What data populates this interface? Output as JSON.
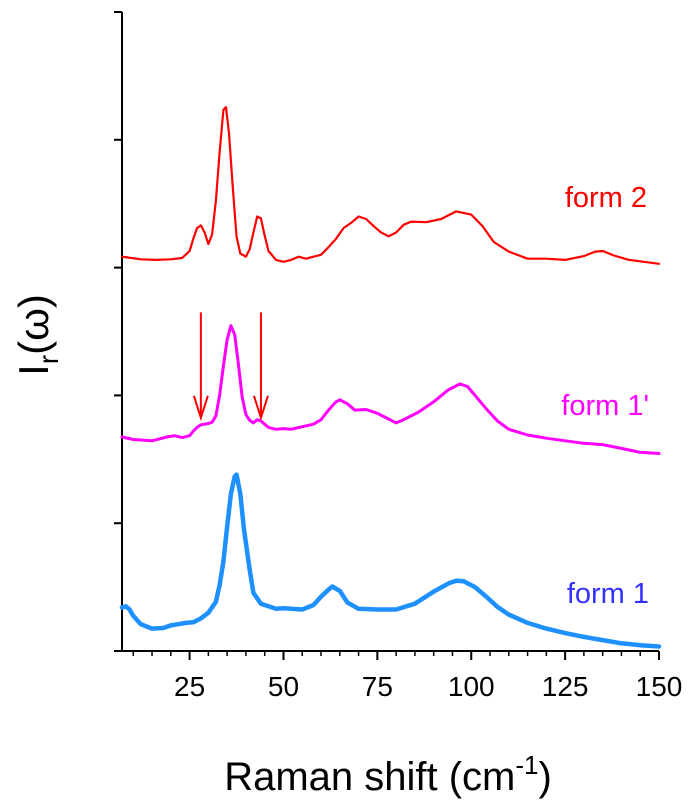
{
  "chart_data": {
    "type": "line",
    "xlabel": {
      "main": "Raman shift (cm",
      "sup": "-1",
      "close": ")"
    },
    "ylabel": {
      "main": "I",
      "sub": "r",
      "rest": "(ω)"
    },
    "xlim": [
      7,
      150
    ],
    "ylim": [
      0,
      1
    ],
    "x_ticks": [
      25,
      50,
      75,
      100,
      125,
      150
    ],
    "grid": false,
    "series": [
      {
        "name": "form 2",
        "color": "#ff0000",
        "points": [
          [
            7,
            0.617
          ],
          [
            12,
            0.613
          ],
          [
            16,
            0.612
          ],
          [
            20,
            0.613
          ],
          [
            23,
            0.615
          ],
          [
            25,
            0.626
          ],
          [
            26,
            0.645
          ],
          [
            27,
            0.662
          ],
          [
            28,
            0.666
          ],
          [
            29,
            0.655
          ],
          [
            30,
            0.637
          ],
          [
            31,
            0.652
          ],
          [
            32,
            0.705
          ],
          [
            33,
            0.78
          ],
          [
            34,
            0.847
          ],
          [
            34.7,
            0.851
          ],
          [
            35.5,
            0.81
          ],
          [
            36.5,
            0.725
          ],
          [
            37.5,
            0.649
          ],
          [
            38.5,
            0.622
          ],
          [
            40,
            0.617
          ],
          [
            41,
            0.629
          ],
          [
            42,
            0.655
          ],
          [
            43,
            0.68
          ],
          [
            44,
            0.677
          ],
          [
            45,
            0.65
          ],
          [
            46,
            0.626
          ],
          [
            48,
            0.612
          ],
          [
            50,
            0.609
          ],
          [
            52,
            0.612
          ],
          [
            54,
            0.617
          ],
          [
            56,
            0.614
          ],
          [
            58,
            0.617
          ],
          [
            60,
            0.62
          ],
          [
            62,
            0.632
          ],
          [
            64,
            0.645
          ],
          [
            66,
            0.662
          ],
          [
            68,
            0.67
          ],
          [
            70,
            0.68
          ],
          [
            72,
            0.676
          ],
          [
            74,
            0.665
          ],
          [
            76,
            0.655
          ],
          [
            78,
            0.649
          ],
          [
            80,
            0.655
          ],
          [
            82,
            0.667
          ],
          [
            84,
            0.672
          ],
          [
            88,
            0.671
          ],
          [
            92,
            0.676
          ],
          [
            96,
            0.688
          ],
          [
            100,
            0.683
          ],
          [
            103,
            0.665
          ],
          [
            106,
            0.64
          ],
          [
            110,
            0.625
          ],
          [
            115,
            0.614
          ],
          [
            120,
            0.614
          ],
          [
            125,
            0.612
          ],
          [
            130,
            0.618
          ],
          [
            133,
            0.625
          ],
          [
            135,
            0.626
          ],
          [
            138,
            0.619
          ],
          [
            142,
            0.612
          ],
          [
            146,
            0.609
          ],
          [
            150,
            0.606
          ]
        ]
      },
      {
        "name": "form 1'",
        "color": "#ff00ff",
        "points": [
          [
            7,
            0.335
          ],
          [
            10,
            0.331
          ],
          [
            15,
            0.329
          ],
          [
            19,
            0.335
          ],
          [
            21,
            0.337
          ],
          [
            23,
            0.334
          ],
          [
            25,
            0.337
          ],
          [
            26,
            0.344
          ],
          [
            27,
            0.35
          ],
          [
            28,
            0.354
          ],
          [
            29,
            0.355
          ],
          [
            30,
            0.356
          ],
          [
            31,
            0.358
          ],
          [
            32,
            0.368
          ],
          [
            33,
            0.4
          ],
          [
            34,
            0.446
          ],
          [
            35,
            0.487
          ],
          [
            36,
            0.509
          ],
          [
            37,
            0.495
          ],
          [
            38,
            0.449
          ],
          [
            39,
            0.397
          ],
          [
            40,
            0.37
          ],
          [
            41,
            0.361
          ],
          [
            42,
            0.357
          ],
          [
            43,
            0.362
          ],
          [
            44,
            0.36
          ],
          [
            46,
            0.35
          ],
          [
            48,
            0.347
          ],
          [
            50,
            0.348
          ],
          [
            52,
            0.347
          ],
          [
            55,
            0.351
          ],
          [
            58,
            0.355
          ],
          [
            60,
            0.362
          ],
          [
            62,
            0.377
          ],
          [
            64,
            0.39
          ],
          [
            65,
            0.393
          ],
          [
            67,
            0.387
          ],
          [
            69,
            0.377
          ],
          [
            72,
            0.378
          ],
          [
            75,
            0.372
          ],
          [
            78,
            0.363
          ],
          [
            80,
            0.357
          ],
          [
            82,
            0.362
          ],
          [
            86,
            0.374
          ],
          [
            90,
            0.39
          ],
          [
            94,
            0.409
          ],
          [
            97,
            0.418
          ],
          [
            99,
            0.414
          ],
          [
            101,
            0.4
          ],
          [
            104,
            0.379
          ],
          [
            107,
            0.36
          ],
          [
            110,
            0.347
          ],
          [
            115,
            0.338
          ],
          [
            120,
            0.333
          ],
          [
            125,
            0.329
          ],
          [
            130,
            0.325
          ],
          [
            135,
            0.323
          ],
          [
            140,
            0.317
          ],
          [
            145,
            0.311
          ],
          [
            150,
            0.309
          ]
        ]
      },
      {
        "name": "form 1",
        "color": "#1e90ff",
        "points": [
          [
            7,
            0.068
          ],
          [
            8,
            0.07
          ],
          [
            9,
            0.065
          ],
          [
            10,
            0.055
          ],
          [
            12,
            0.042
          ],
          [
            15,
            0.035
          ],
          [
            18,
            0.036
          ],
          [
            20,
            0.04
          ],
          [
            22,
            0.042
          ],
          [
            24,
            0.044
          ],
          [
            26,
            0.045
          ],
          [
            28,
            0.051
          ],
          [
            30,
            0.06
          ],
          [
            32,
            0.077
          ],
          [
            33,
            0.103
          ],
          [
            34,
            0.14
          ],
          [
            35,
            0.194
          ],
          [
            36,
            0.246
          ],
          [
            37,
            0.273
          ],
          [
            37.5,
            0.276
          ],
          [
            38.5,
            0.246
          ],
          [
            39.5,
            0.19
          ],
          [
            41,
            0.127
          ],
          [
            42,
            0.091
          ],
          [
            44,
            0.074
          ],
          [
            46,
            0.07
          ],
          [
            48,
            0.066
          ],
          [
            50,
            0.067
          ],
          [
            55,
            0.065
          ],
          [
            58,
            0.072
          ],
          [
            60,
            0.085
          ],
          [
            62,
            0.096
          ],
          [
            63,
            0.101
          ],
          [
            65,
            0.094
          ],
          [
            67,
            0.076
          ],
          [
            70,
            0.066
          ],
          [
            75,
            0.065
          ],
          [
            80,
            0.065
          ],
          [
            85,
            0.074
          ],
          [
            90,
            0.093
          ],
          [
            94,
            0.106
          ],
          [
            96,
            0.11
          ],
          [
            98,
            0.109
          ],
          [
            101,
            0.1
          ],
          [
            104,
            0.085
          ],
          [
            107,
            0.069
          ],
          [
            110,
            0.057
          ],
          [
            115,
            0.044
          ],
          [
            120,
            0.035
          ],
          [
            125,
            0.028
          ],
          [
            130,
            0.022
          ],
          [
            135,
            0.017
          ],
          [
            140,
            0.012
          ],
          [
            145,
            0.009
          ],
          [
            150,
            0.007
          ]
        ]
      }
    ],
    "annotations": [
      {
        "type": "arrow",
        "color": "#ff0000",
        "x": 28,
        "y_from": 0.53,
        "y_to": 0.365
      },
      {
        "type": "arrow",
        "color": "#ff0000",
        "x": 44,
        "y_from": 0.53,
        "y_to": 0.365
      }
    ]
  }
}
